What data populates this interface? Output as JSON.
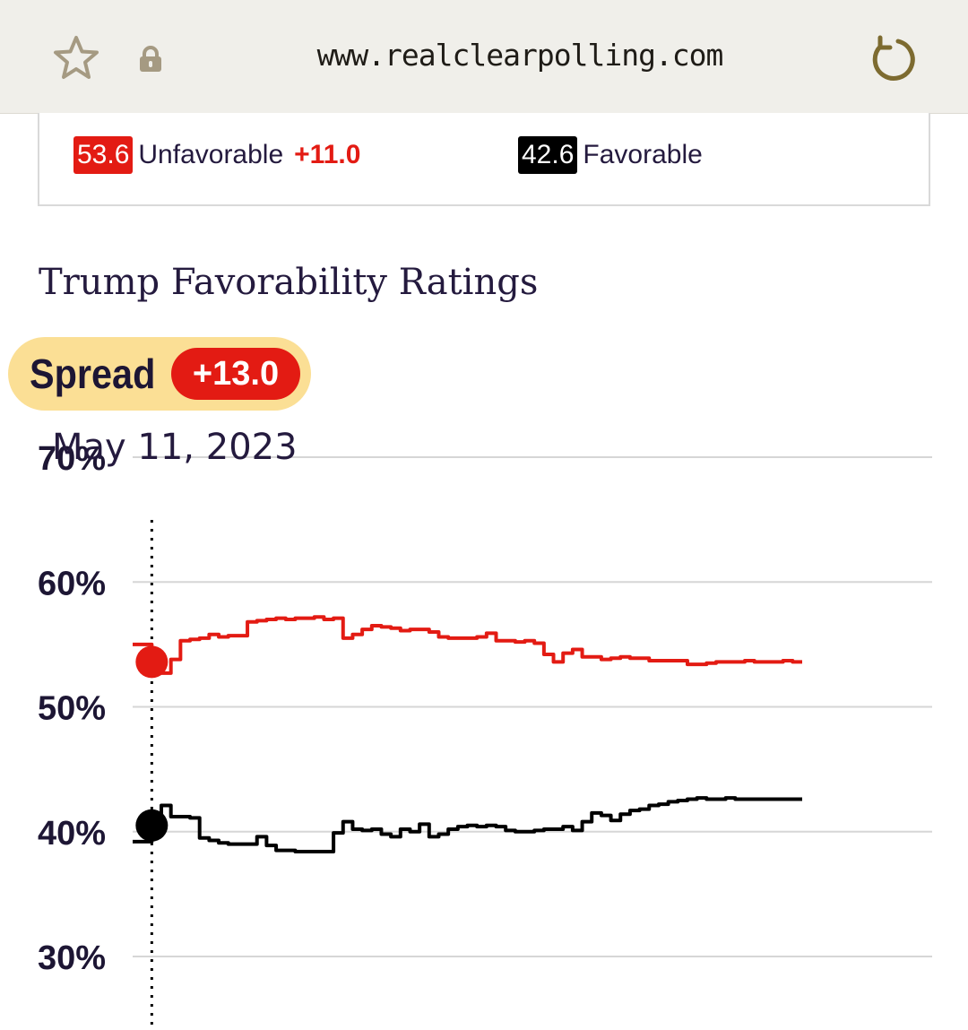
{
  "browser": {
    "url": "www.realclearpolling.com",
    "icons": [
      "star-icon",
      "lock-icon",
      "reload-icon"
    ]
  },
  "summary": {
    "unfavorable": {
      "value": "53.6",
      "label": "Unfavorable",
      "spread": "+11.0"
    },
    "favorable": {
      "value": "42.6",
      "label": "Favorable"
    }
  },
  "title": "Trump Favorability Ratings",
  "spread_pill": {
    "label": "Spread",
    "value": "+13.0"
  },
  "hover_date": "May 11, 2023",
  "colors": {
    "unfavorable": "#e31b13",
    "favorable": "#000000",
    "accent": "#fbdf95",
    "title": "#241a3e"
  },
  "chart_data": {
    "type": "line",
    "title": "Trump Favorability Ratings",
    "xlabel": "",
    "ylabel": "",
    "ylim": [
      30,
      70
    ],
    "yticks": [
      "30%",
      "40%",
      "50%",
      "60%",
      "70%"
    ],
    "ytick_values": [
      30,
      40,
      50,
      60,
      70
    ],
    "grid": true,
    "hover": {
      "date": "May 11, 2023",
      "index": 2,
      "unfavorable": 53.6,
      "favorable": 40.5
    },
    "x": [
      0,
      1,
      2,
      3,
      4,
      5,
      6,
      7,
      8,
      9,
      10,
      11,
      12,
      13,
      14,
      15,
      16,
      17,
      18,
      19,
      20,
      21,
      22,
      23,
      24,
      25,
      26,
      27,
      28,
      29,
      30,
      31,
      32,
      33,
      34,
      35,
      36,
      37,
      38,
      39,
      40,
      41,
      42,
      43,
      44,
      45,
      46,
      47,
      48,
      49,
      50,
      51,
      52,
      53,
      54,
      55,
      56,
      57,
      58,
      59,
      60,
      61,
      62,
      63,
      64,
      65,
      66,
      67,
      68,
      69,
      70
    ],
    "series": [
      {
        "name": "Unfavorable",
        "values": [
          55.0,
          55.0,
          53.6,
          52.7,
          53.8,
          55.3,
          55.4,
          55.5,
          55.8,
          55.6,
          55.7,
          55.7,
          56.8,
          56.9,
          57.0,
          57.1,
          57.0,
          57.1,
          57.1,
          57.2,
          57.0,
          57.1,
          55.5,
          55.8,
          56.2,
          56.5,
          56.4,
          56.3,
          56.1,
          56.2,
          56.2,
          56.0,
          55.6,
          55.5,
          55.5,
          55.5,
          55.6,
          55.9,
          55.3,
          55.3,
          55.2,
          55.3,
          55.1,
          54.2,
          53.6,
          54.3,
          54.6,
          54.0,
          54.0,
          53.8,
          53.9,
          54.0,
          53.9,
          53.9,
          53.7,
          53.7,
          53.7,
          53.7,
          53.4,
          53.4,
          53.5,
          53.6,
          53.6,
          53.6,
          53.7,
          53.6,
          53.6,
          53.6,
          53.7,
          53.6,
          53.6
        ]
      },
      {
        "name": "Favorable",
        "values": [
          39.2,
          39.2,
          40.5,
          42.1,
          41.2,
          41.2,
          41.1,
          39.5,
          39.3,
          39.1,
          39.0,
          39.0,
          39.0,
          39.6,
          38.9,
          38.5,
          38.5,
          38.4,
          38.4,
          38.4,
          38.4,
          39.9,
          40.8,
          40.2,
          40.1,
          40.2,
          39.8,
          39.6,
          40.2,
          40.0,
          40.6,
          39.6,
          39.8,
          40.2,
          40.4,
          40.5,
          40.4,
          40.5,
          40.4,
          40.1,
          40.0,
          40.0,
          40.1,
          40.2,
          40.2,
          40.4,
          40.1,
          40.8,
          41.5,
          41.3,
          40.9,
          41.4,
          41.7,
          41.8,
          42.1,
          42.2,
          42.4,
          42.5,
          42.6,
          42.7,
          42.6,
          42.6,
          42.7,
          42.6,
          42.6,
          42.6,
          42.6,
          42.6,
          42.6,
          42.6,
          42.6
        ]
      }
    ]
  }
}
